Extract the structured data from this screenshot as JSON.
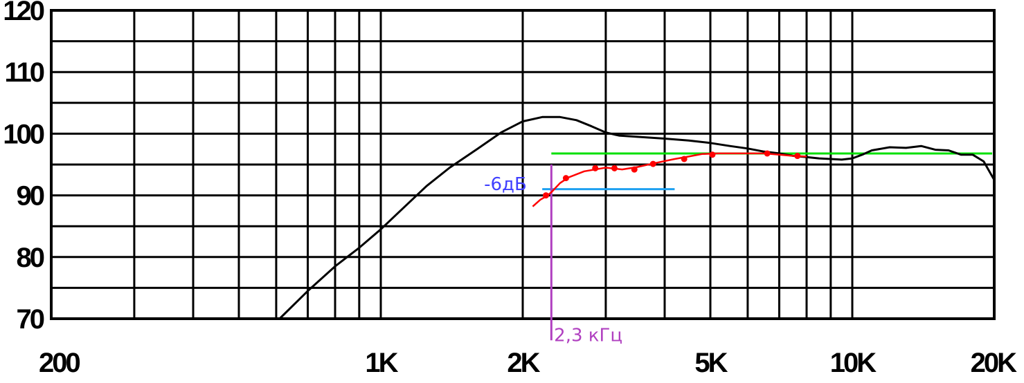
{
  "chart_data": {
    "type": "line",
    "title": "",
    "xlabel": "",
    "ylabel": "",
    "xscale": "log",
    "xlim": [
      200,
      20000
    ],
    "ylim": [
      70,
      120
    ],
    "grid": true,
    "x_tick_labels": [
      {
        "value": 200,
        "label": "200"
      },
      {
        "value": 1000,
        "label": "1K"
      },
      {
        "value": 2000,
        "label": "2K"
      },
      {
        "value": 5000,
        "label": "5K"
      },
      {
        "value": 10000,
        "label": "10K"
      },
      {
        "value": 20000,
        "label": "20K"
      }
    ],
    "y_tick_labels": [
      {
        "value": 70,
        "label": "70"
      },
      {
        "value": 80,
        "label": "80"
      },
      {
        "value": 90,
        "label": "90"
      },
      {
        "value": 100,
        "label": "100"
      },
      {
        "value": 110,
        "label": "110"
      },
      {
        "value": 120,
        "label": "120"
      }
    ],
    "series": [
      {
        "color": "#000000",
        "x": [
          610,
          700,
          800,
          900,
          1000,
          1100,
          1250,
          1400,
          1600,
          1800,
          2000,
          2200,
          2400,
          2600,
          2800,
          3000,
          3200,
          3500,
          4000,
          4500,
          5000,
          5500,
          6000,
          6500,
          7000,
          7500,
          8000,
          8500,
          9000,
          9500,
          10000,
          10500,
          11000,
          12000,
          13000,
          14000,
          15000,
          16000,
          17000,
          18000,
          19000,
          20000
        ],
        "y": [
          70,
          74.5,
          78.5,
          81.5,
          84.5,
          87.5,
          91.5,
          94.5,
          97.5,
          100.2,
          102,
          102.7,
          102.7,
          102.2,
          101.2,
          100.2,
          99.7,
          99.5,
          99.2,
          98.9,
          98.5,
          98.0,
          97.6,
          97.1,
          96.8,
          96.4,
          96.2,
          96.0,
          95.9,
          95.8,
          96.0,
          96.6,
          97.3,
          97.8,
          97.7,
          98.0,
          97.4,
          97.3,
          96.6,
          96.6,
          95.5,
          92.5
        ]
      },
      {
        "color": "#ff0000",
        "x": [
          2100,
          2180,
          2250,
          2300,
          2400,
          2500,
          2700,
          3000,
          3250,
          3500,
          3800,
          4200,
          4500,
          4800,
          5200,
          5600,
          6000,
          6500,
          7000,
          7500,
          8000
        ],
        "y": [
          88.2,
          89.3,
          89.9,
          90.5,
          92.0,
          92.9,
          93.9,
          94.5,
          94.2,
          94.6,
          95.2,
          95.9,
          96.3,
          96.7,
          96.8,
          96.8,
          96.8,
          96.8,
          96.6,
          96.4,
          96.3
        ]
      }
    ],
    "markers": {
      "color": "#ff0000",
      "x": [
        2240,
        2470,
        2850,
        3130,
        3450,
        3780,
        4400,
        5050,
        6600,
        7650
      ],
      "y": [
        90.0,
        92.8,
        94.4,
        94.4,
        94.2,
        95.1,
        95.9,
        96.6,
        96.8,
        96.4
      ]
    },
    "reference_lines": [
      {
        "color": "#00e000",
        "x": [
          2300,
          19800
        ],
        "y": [
          96.8,
          96.8
        ]
      },
      {
        "color": "#1ea0f0",
        "x": [
          2200,
          4200
        ],
        "y": [
          91.0,
          91.0
        ]
      },
      {
        "color": "#b040c0",
        "x": [
          2300,
          2300
        ],
        "y": [
          95,
          66.5
        ]
      }
    ],
    "annotations": [
      {
        "text": "-6дБ",
        "color": "#4040ff",
        "x": 2040,
        "y": 92
      },
      {
        "text": "2,3 кГц",
        "color": "#b040c0",
        "x": 2330,
        "y": 67.5
      }
    ]
  }
}
